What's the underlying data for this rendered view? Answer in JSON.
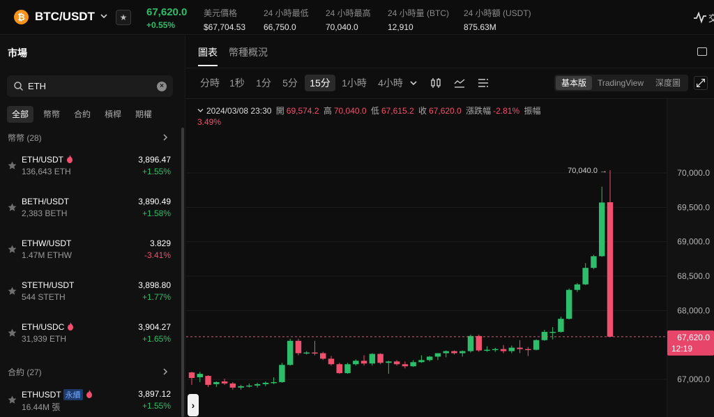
{
  "header": {
    "coin_symbol_glyph": "₿",
    "pair": "BTC/USDT",
    "last_price": "67,620.0",
    "change_pct": "+0.55%",
    "stats": [
      {
        "label": "美元價格",
        "value": "$67,704.53"
      },
      {
        "label": "24 小時最低",
        "value": "66,750.0"
      },
      {
        "label": "24 小時最高",
        "value": "70,040.0"
      },
      {
        "label": "24 小時量 (BTC)",
        "value": "12,910"
      },
      {
        "label": "24 小時額 (USDT)",
        "value": "875.63M"
      }
    ],
    "right_text": "交"
  },
  "sidebar": {
    "title": "市場",
    "search": {
      "value": "ETH",
      "placeholder": ""
    },
    "filter_tabs": [
      "全部",
      "幣幣",
      "合約",
      "槓桿",
      "期權"
    ],
    "active_filter": "全部",
    "spot_section": "幣幣 (28)",
    "futures_section": "合約 (27)",
    "spot_items": [
      {
        "symbol": "ETH/USDT",
        "hot": true,
        "volume": "136,643 ETH",
        "price": "3,896.47",
        "change": "+1.55%",
        "dir": "up"
      },
      {
        "symbol": "BETH/USDT",
        "hot": false,
        "volume": "2,383 BETH",
        "price": "3,890.49",
        "change": "+1.58%",
        "dir": "up"
      },
      {
        "symbol": "ETHW/USDT",
        "hot": false,
        "volume": "1.47M ETHW",
        "price": "3.829",
        "change": "-3.41%",
        "dir": "down"
      },
      {
        "symbol": "STETH/USDT",
        "hot": false,
        "volume": "544 STETH",
        "price": "3,898.80",
        "change": "+1.77%",
        "dir": "up"
      },
      {
        "symbol": "ETH/USDC",
        "hot": true,
        "volume": "31,939 ETH",
        "price": "3,904.27",
        "change": "+1.65%",
        "dir": "up"
      }
    ],
    "futures_items": [
      {
        "symbol": "ETHUSDT",
        "badge": "永續",
        "hot": true,
        "volume": "16.44M 張",
        "price": "3,897.12",
        "change": "+1.55%",
        "dir": "up"
      }
    ]
  },
  "chart_panel": {
    "tabs": [
      "圖表",
      "幣種概況"
    ],
    "active_tab": "圖表",
    "timeframes": [
      "分時",
      "1秒",
      "1分",
      "5分",
      "15分",
      "1小時",
      "4小時"
    ],
    "active_timeframe": "15分",
    "view_modes": [
      "基本版",
      "TradingView",
      "深度圖"
    ],
    "active_view": "基本版",
    "ohlc": {
      "time": "2024/03/08 23:30",
      "open_label": "開",
      "open": "69,574.2",
      "high_label": "高",
      "high": "70,040.0",
      "low_label": "低",
      "low": "67,615.2",
      "close_label": "收",
      "close": "67,620.0",
      "change_label": "漲跌幅",
      "change": "-2.81%",
      "amplitude_label": "振幅",
      "amplitude": "3.49%"
    },
    "high_marker": "70,040.0 →",
    "current_price_tag": "67,620.0",
    "countdown": "12:19"
  },
  "colors": {
    "up": "#2ebd6b",
    "down": "#f0506e",
    "accent_btc": "#f7931a",
    "badge": "#6fa8ff"
  },
  "chart_data": {
    "type": "candlestick",
    "interval": "15分",
    "y_ticks": [
      "70,000.0",
      "69,500.0",
      "69,000.0",
      "68,500.0",
      "68,000.0",
      "67,000.0"
    ],
    "y_tick_values": [
      70000,
      69500,
      69000,
      68500,
      68000,
      67000
    ],
    "ylim": [
      66950,
      70200
    ],
    "current_price": 67620.0,
    "candles": [
      {
        "o": 67100,
        "h": 67110,
        "l": 66920,
        "c": 67020
      },
      {
        "o": 67030,
        "h": 67110,
        "l": 66960,
        "c": 67080
      },
      {
        "o": 67050,
        "h": 67060,
        "l": 66890,
        "c": 66920
      },
      {
        "o": 66930,
        "h": 66970,
        "l": 66890,
        "c": 66960
      },
      {
        "o": 66970,
        "h": 67010,
        "l": 66920,
        "c": 66940
      },
      {
        "o": 66940,
        "h": 66960,
        "l": 66850,
        "c": 66880
      },
      {
        "o": 66880,
        "h": 66920,
        "l": 66850,
        "c": 66900
      },
      {
        "o": 66900,
        "h": 66940,
        "l": 66880,
        "c": 66910
      },
      {
        "o": 66910,
        "h": 66950,
        "l": 66880,
        "c": 66930
      },
      {
        "o": 66930,
        "h": 66970,
        "l": 66900,
        "c": 66950
      },
      {
        "o": 66950,
        "h": 67030,
        "l": 66930,
        "c": 66960
      },
      {
        "o": 66960,
        "h": 67240,
        "l": 66950,
        "c": 67210
      },
      {
        "o": 67210,
        "h": 67590,
        "l": 67200,
        "c": 67560
      },
      {
        "o": 67560,
        "h": 67590,
        "l": 67350,
        "c": 67380
      },
      {
        "o": 67390,
        "h": 67410,
        "l": 67360,
        "c": 67390
      },
      {
        "o": 67390,
        "h": 67560,
        "l": 67350,
        "c": 67380
      },
      {
        "o": 67380,
        "h": 67400,
        "l": 67280,
        "c": 67300
      },
      {
        "o": 67300,
        "h": 67340,
        "l": 67200,
        "c": 67220
      },
      {
        "o": 67220,
        "h": 67240,
        "l": 67080,
        "c": 67090
      },
      {
        "o": 67090,
        "h": 67240,
        "l": 67080,
        "c": 67220
      },
      {
        "o": 67220,
        "h": 67290,
        "l": 67200,
        "c": 67270
      },
      {
        "o": 67270,
        "h": 67350,
        "l": 67200,
        "c": 67230
      },
      {
        "o": 67230,
        "h": 67380,
        "l": 67200,
        "c": 67370
      },
      {
        "o": 67370,
        "h": 67380,
        "l": 67220,
        "c": 67240
      },
      {
        "o": 67240,
        "h": 67270,
        "l": 67080,
        "c": 67260
      },
      {
        "o": 67260,
        "h": 67280,
        "l": 67200,
        "c": 67220
      },
      {
        "o": 67220,
        "h": 67260,
        "l": 67160,
        "c": 67190
      },
      {
        "o": 67190,
        "h": 67280,
        "l": 67180,
        "c": 67250
      },
      {
        "o": 67250,
        "h": 67350,
        "l": 67240,
        "c": 67280
      },
      {
        "o": 67280,
        "h": 67340,
        "l": 67260,
        "c": 67330
      },
      {
        "o": 67330,
        "h": 67380,
        "l": 67280,
        "c": 67380
      },
      {
        "o": 67380,
        "h": 67420,
        "l": 67320,
        "c": 67410
      },
      {
        "o": 67410,
        "h": 67420,
        "l": 67360,
        "c": 67380
      },
      {
        "o": 67380,
        "h": 67420,
        "l": 67330,
        "c": 67410
      },
      {
        "o": 67410,
        "h": 67650,
        "l": 67390,
        "c": 67630
      },
      {
        "o": 67630,
        "h": 67650,
        "l": 67400,
        "c": 67420
      },
      {
        "o": 67420,
        "h": 67480,
        "l": 67400,
        "c": 67430
      },
      {
        "o": 67430,
        "h": 67460,
        "l": 67400,
        "c": 67440
      },
      {
        "o": 67440,
        "h": 67500,
        "l": 67380,
        "c": 67410
      },
      {
        "o": 67410,
        "h": 67490,
        "l": 67380,
        "c": 67460
      },
      {
        "o": 67460,
        "h": 67570,
        "l": 67380,
        "c": 67440
      },
      {
        "o": 67440,
        "h": 67470,
        "l": 67340,
        "c": 67430
      },
      {
        "o": 67430,
        "h": 67580,
        "l": 67420,
        "c": 67570
      },
      {
        "o": 67570,
        "h": 67720,
        "l": 67560,
        "c": 67690
      },
      {
        "o": 67690,
        "h": 67760,
        "l": 67580,
        "c": 67690
      },
      {
        "o": 67690,
        "h": 67910,
        "l": 67680,
        "c": 67880
      },
      {
        "o": 67880,
        "h": 68320,
        "l": 67870,
        "c": 68300
      },
      {
        "o": 68300,
        "h": 68400,
        "l": 68270,
        "c": 68380
      },
      {
        "o": 68380,
        "h": 68690,
        "l": 68370,
        "c": 68620
      },
      {
        "o": 68620,
        "h": 68810,
        "l": 68600,
        "c": 68790
      },
      {
        "o": 68790,
        "h": 69800,
        "l": 68780,
        "c": 69570
      },
      {
        "o": 69574.2,
        "h": 70040,
        "l": 67615.2,
        "c": 67620
      }
    ]
  }
}
